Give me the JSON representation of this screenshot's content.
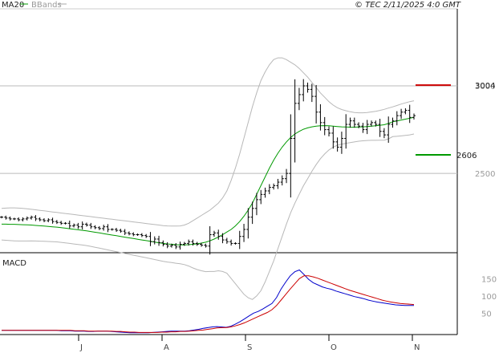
{
  "header": {
    "legend": [
      {
        "label": "MA20",
        "color": "#009900"
      },
      {
        "label": "BBands",
        "color": "#aaaaaa"
      }
    ],
    "copyright": "© TEC 2/11/2025 4:0 GMT"
  },
  "macd_panel": {
    "label": "MACD"
  },
  "chart_data": [
    {
      "type": "ohlc",
      "price_axis": {
        "ticks": [
          {
            "value": 2500,
            "label": "2500"
          },
          {
            "value": 3000,
            "label": "3000"
          }
        ],
        "ylim": [
          2047,
          3440
        ]
      },
      "x_axis": {
        "ticks": [
          "J",
          "A",
          "S",
          "O",
          "N"
        ],
        "tick_index": [
          0,
          22,
          44,
          66,
          88
        ]
      },
      "resistance": {
        "value": 3004,
        "label": "3004",
        "color": "#cc0000"
      },
      "support": {
        "value": 2606,
        "label": "2606",
        "color": "#009900"
      },
      "series": [
        {
          "name": "MA20",
          "color": "#009900"
        },
        {
          "name": "BBands",
          "color": "#aaaaaa"
        }
      ],
      "close": [
        2250,
        2245,
        2240,
        2240,
        2235,
        2240,
        2245,
        2250,
        2240,
        2235,
        2230,
        2235,
        2225,
        2220,
        2215,
        2215,
        2200,
        2205,
        2195,
        2210,
        2205,
        2195,
        2190,
        2185,
        2195,
        2180,
        2180,
        2175,
        2170,
        2160,
        2155,
        2150,
        2150,
        2145,
        2140,
        2110,
        2125,
        2105,
        2095,
        2085,
        2090,
        2080,
        2095,
        2100,
        2110,
        2100,
        2095,
        2090,
        2085,
        2150,
        2160,
        2140,
        2120,
        2110,
        2100,
        2100,
        2140,
        2180,
        2250,
        2300,
        2350,
        2380,
        2400,
        2420,
        2430,
        2450,
        2470,
        2500,
        2700,
        2900,
        2950,
        3000,
        2980,
        2940,
        2850,
        2790,
        2750,
        2730,
        2680,
        2650,
        2700,
        2780,
        2800,
        2780,
        2770,
        2750,
        2780,
        2790,
        2780,
        2740,
        2720,
        2780,
        2800,
        2830,
        2850,
        2860,
        2820,
        2830
      ],
      "ma20": [
        2210,
        2210,
        2209,
        2209,
        2208,
        2207,
        2206,
        2205,
        2203,
        2201,
        2199,
        2197,
        2195,
        2193,
        2190,
        2187,
        2184,
        2181,
        2178,
        2175,
        2172,
        2168,
        2164,
        2160,
        2156,
        2152,
        2148,
        2144,
        2140,
        2136,
        2132,
        2128,
        2124,
        2120,
        2116,
        2112,
        2108,
        2104,
        2100,
        2097,
        2095,
        2093,
        2092,
        2092,
        2093,
        2095,
        2098,
        2102,
        2107,
        2115,
        2125,
        2137,
        2150,
        2165,
        2180,
        2200,
        2225,
        2255,
        2290,
        2330,
        2380,
        2430,
        2480,
        2530,
        2575,
        2615,
        2650,
        2680,
        2705,
        2725,
        2740,
        2752,
        2760,
        2766,
        2770,
        2772,
        2773,
        2772,
        2770,
        2768,
        2766,
        2765,
        2764,
        2764,
        2765,
        2766,
        2768,
        2770,
        2772,
        2775,
        2778,
        2785,
        2795,
        2800,
        2805,
        2810,
        2815,
        2820
      ],
      "bb_upper": [
        2300,
        2302,
        2303,
        2303,
        2302,
        2300,
        2298,
        2295,
        2292,
        2289,
        2286,
        2283,
        2280,
        2277,
        2274,
        2271,
        2268,
        2265,
        2262,
        2259,
        2256,
        2253,
        2250,
        2247,
        2244,
        2241,
        2238,
        2235,
        2232,
        2229,
        2226,
        2223,
        2220,
        2217,
        2214,
        2211,
        2208,
        2205,
        2202,
        2200,
        2199,
        2199,
        2200,
        2205,
        2215,
        2230,
        2245,
        2260,
        2275,
        2290,
        2310,
        2330,
        2360,
        2400,
        2460,
        2530,
        2610,
        2700,
        2790,
        2880,
        2960,
        3030,
        3080,
        3120,
        3150,
        3160,
        3160,
        3150,
        3135,
        3120,
        3100,
        3075,
        3050,
        3020,
        2990,
        2960,
        2935,
        2910,
        2890,
        2875,
        2865,
        2858,
        2852,
        2848,
        2846,
        2846,
        2848,
        2851,
        2855,
        2860,
        2866,
        2873,
        2880,
        2888,
        2896,
        2903,
        2910,
        2915
      ],
      "bb_lower": [
        2120,
        2118,
        2116,
        2115,
        2114,
        2114,
        2114,
        2115,
        2114,
        2113,
        2112,
        2111,
        2110,
        2109,
        2106,
        2103,
        2100,
        2097,
        2094,
        2091,
        2088,
        2083,
        2078,
        2073,
        2068,
        2063,
        2058,
        2053,
        2048,
        2043,
        2038,
        2033,
        2028,
        2023,
        2018,
        2013,
        2008,
        2003,
        1998,
        1994,
        1991,
        1987,
        1984,
        1979,
        1971,
        1960,
        1951,
        1944,
        1939,
        1940,
        1940,
        1944,
        1940,
        1930,
        1900,
        1870,
        1840,
        1810,
        1790,
        1780,
        1800,
        1830,
        1880,
        1940,
        2000,
        2070,
        2140,
        2210,
        2275,
        2330,
        2380,
        2429,
        2470,
        2512,
        2550,
        2584,
        2611,
        2634,
        2650,
        2661,
        2667,
        2672,
        2676,
        2680,
        2684,
        2686,
        2688,
        2689,
        2689,
        2690,
        2690,
        2697,
        2710,
        2712,
        2714,
        2717,
        2720,
        2725
      ]
    },
    {
      "type": "line",
      "name": "MACD",
      "yaxis": {
        "ticks": [
          {
            "value": 50,
            "label": "50"
          },
          {
            "value": 100,
            "label": "100"
          },
          {
            "value": 150,
            "label": "150"
          }
        ],
        "ylim": [
          -12,
          225
        ]
      },
      "series": [
        {
          "name": "MACD",
          "color": "#0000cc",
          "values": [
            0,
            0,
            0,
            0,
            0,
            0,
            0,
            0,
            0,
            0,
            0,
            0,
            0,
            -1,
            -1,
            -1,
            -2,
            -2,
            -2,
            -3,
            -3,
            -2,
            -2,
            -2,
            -3,
            -4,
            -5,
            -6,
            -7,
            -7,
            -7,
            -7,
            -7,
            -6,
            -5,
            -4,
            -3,
            -2,
            -2,
            -2,
            -2,
            -1,
            1,
            3,
            6,
            8,
            10,
            11,
            10,
            9,
            12,
            18,
            25,
            33,
            42,
            50,
            55,
            62,
            70,
            78,
            95,
            120,
            140,
            158,
            170,
            175,
            162,
            148,
            138,
            132,
            126,
            122,
            119,
            114,
            110,
            106,
            102,
            98,
            95,
            92,
            88,
            85,
            82,
            80,
            78,
            76,
            74,
            73,
            72,
            72,
            72
          ]
        },
        {
          "name": "Signal",
          "color": "#cc0000",
          "values": [
            0,
            0,
            0,
            0,
            0,
            0,
            0,
            0,
            0,
            0,
            0,
            0,
            0,
            0,
            0,
            0,
            -1,
            -1,
            -1,
            -2,
            -2,
            -2,
            -2,
            -2,
            -2,
            -3,
            -3,
            -4,
            -5,
            -5,
            -6,
            -6,
            -6,
            -6,
            -6,
            -5,
            -5,
            -4,
            -4,
            -3,
            -3,
            -2,
            -1,
            0,
            1,
            3,
            5,
            7,
            8,
            8,
            10,
            13,
            17,
            22,
            28,
            34,
            40,
            46,
            52,
            60,
            72,
            88,
            104,
            120,
            135,
            150,
            158,
            158,
            155,
            151,
            146,
            141,
            136,
            131,
            126,
            121,
            116,
            112,
            108,
            104,
            100,
            96,
            92,
            88,
            85,
            82,
            80,
            78,
            77,
            76,
            75
          ]
        }
      ]
    }
  ]
}
